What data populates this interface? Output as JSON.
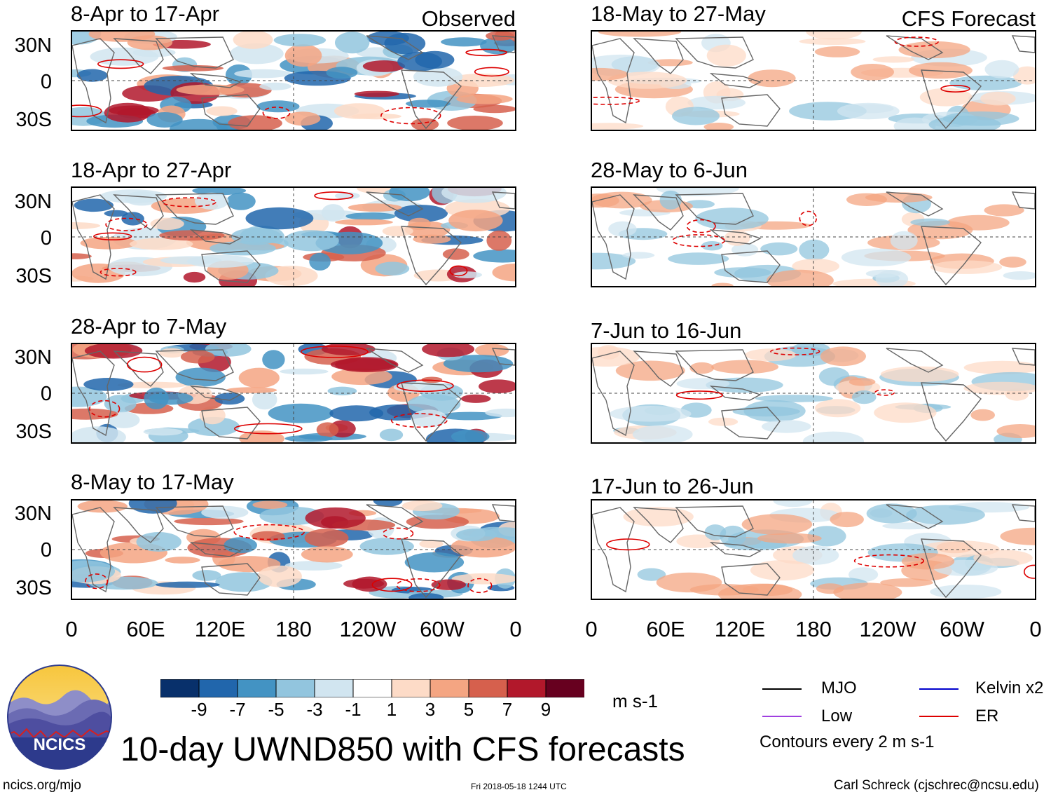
{
  "panels": {
    "left": [
      {
        "title": "8-Apr to 17-Apr",
        "tag": "Observed"
      },
      {
        "title": "18-Apr to 27-Apr",
        "tag": ""
      },
      {
        "title": "28-Apr to 7-May",
        "tag": ""
      },
      {
        "title": "8-May to 17-May",
        "tag": ""
      }
    ],
    "right": [
      {
        "title": "18-May to 27-May",
        "tag": "CFS Forecast"
      },
      {
        "title": "28-May to 6-Jun",
        "tag": ""
      },
      {
        "title": "7-Jun to 16-Jun",
        "tag": ""
      },
      {
        "title": "17-Jun to 26-Jun",
        "tag": ""
      }
    ]
  },
  "axes": {
    "lat_labels": [
      "30N",
      "0",
      "30S"
    ],
    "lon_labels": [
      "0",
      "60E",
      "120E",
      "180",
      "120W",
      "60W",
      "0"
    ]
  },
  "colorbar": {
    "labels": [
      "-9",
      "-7",
      "-5",
      "-3",
      "-1",
      "1",
      "3",
      "5",
      "7",
      "9"
    ],
    "colors": [
      "#08306b",
      "#2166ac",
      "#4393c3",
      "#92c5de",
      "#d1e5f0",
      "#ffffff",
      "#fddbc7",
      "#f4a582",
      "#d6604d",
      "#b2182b",
      "#67001f"
    ],
    "units": "m s-1"
  },
  "legend": {
    "items": [
      {
        "label": "MJO",
        "color": "#000000"
      },
      {
        "label": "Kelvin x2",
        "color": "#0000cc"
      },
      {
        "label": "Low",
        "color": "#a040e0"
      },
      {
        "label": "ER",
        "color": "#dd0000"
      }
    ],
    "note": "Contours every 2 m s-1"
  },
  "title": "10-day UWND850 with CFS forecasts",
  "logo_text": "NCICS",
  "footer": {
    "url": "ncics.org/mjo",
    "timestamp": "Fri 2018-05-18 1244 UTC",
    "author": "Carl Schreck (cjschrec@ncsu.edu)"
  }
}
